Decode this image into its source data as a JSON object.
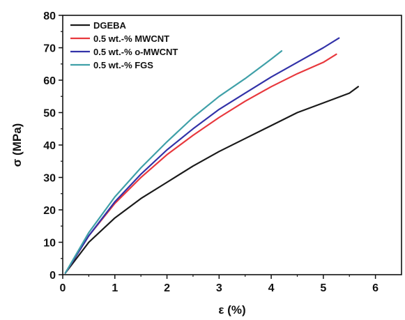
{
  "chart_data": {
    "type": "line",
    "title": "",
    "xlabel": "ε (%)",
    "ylabel": "σ (MPa)",
    "xlim": [
      0,
      6.5
    ],
    "ylim": [
      0,
      80
    ],
    "xticks": [
      0,
      1,
      2,
      3,
      4,
      5,
      6
    ],
    "yticks": [
      0,
      10,
      20,
      30,
      40,
      50,
      60,
      70,
      80
    ],
    "grid": false,
    "legend_position": "top-left",
    "series": [
      {
        "name": "DGEBA",
        "color": "#1a1a1a",
        "points": [
          [
            0.05,
            0.5
          ],
          [
            0.5,
            10
          ],
          [
            1,
            17.5
          ],
          [
            1.5,
            23.5
          ],
          [
            2,
            28.5
          ],
          [
            2.5,
            33.5
          ],
          [
            3,
            38
          ],
          [
            3.5,
            42
          ],
          [
            4,
            46
          ],
          [
            4.5,
            50
          ],
          [
            5,
            53
          ],
          [
            5.5,
            56
          ],
          [
            5.67,
            58
          ]
        ]
      },
      {
        "name": "0.5 wt.-% MWCNT",
        "color": "#e8383d",
        "points": [
          [
            0.05,
            0.5
          ],
          [
            0.5,
            12
          ],
          [
            1,
            22
          ],
          [
            1.5,
            30
          ],
          [
            2,
            37
          ],
          [
            2.5,
            43
          ],
          [
            3,
            48.5
          ],
          [
            3.5,
            53.5
          ],
          [
            4,
            58
          ],
          [
            4.5,
            62
          ],
          [
            5,
            65.5
          ],
          [
            5.25,
            68
          ]
        ]
      },
      {
        "name": "0.5 wt.-% o-MWCNT",
        "color": "#3232a8",
        "points": [
          [
            0.05,
            0.5
          ],
          [
            0.5,
            12
          ],
          [
            1,
            22.5
          ],
          [
            1.5,
            31
          ],
          [
            2,
            38.5
          ],
          [
            2.5,
            45
          ],
          [
            3,
            51
          ],
          [
            3.5,
            56
          ],
          [
            4,
            61
          ],
          [
            4.5,
            65.5
          ],
          [
            5,
            70
          ],
          [
            5.3,
            73
          ]
        ]
      },
      {
        "name": "0.5 wt.-% FGS",
        "color": "#3fa0a8",
        "points": [
          [
            0.05,
            0.5
          ],
          [
            0.5,
            13
          ],
          [
            1,
            24
          ],
          [
            1.5,
            33
          ],
          [
            2,
            41
          ],
          [
            2.5,
            48.5
          ],
          [
            3,
            55
          ],
          [
            3.5,
            60.5
          ],
          [
            4,
            66.5
          ],
          [
            4.2,
            69
          ]
        ]
      }
    ]
  }
}
